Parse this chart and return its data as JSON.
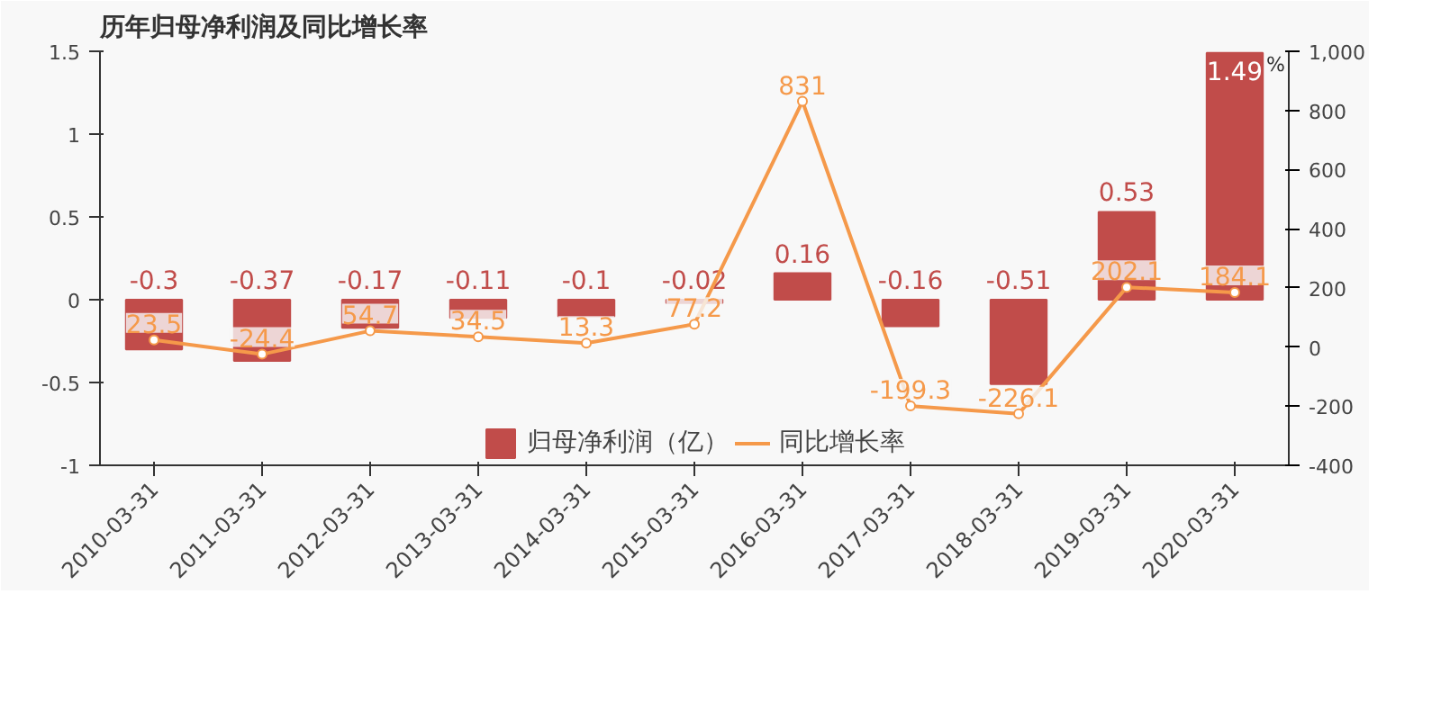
{
  "chart_data": {
    "type": "bar",
    "title": "历年归母净利润及同比增长率",
    "y2label": "%",
    "categories": [
      "2010-03-31",
      "2011-03-31",
      "2012-03-31",
      "2013-03-31",
      "2014-03-31",
      "2015-03-31",
      "2016-03-31",
      "2017-03-31",
      "2018-03-31",
      "2019-03-31",
      "2020-03-31"
    ],
    "series": [
      {
        "name": "归母净利润（亿）",
        "color": "#c14c4a",
        "values": [
          -0.3,
          -0.37,
          -0.17,
          -0.11,
          -0.1,
          -0.02,
          0.16,
          -0.16,
          -0.51,
          0.53,
          1.49
        ]
      },
      {
        "name": "同比增长率",
        "type": "line",
        "axis": "y2",
        "color": "#f5994a",
        "marker": "circle",
        "values": [
          23.5,
          -24.4,
          54.7,
          34.5,
          13.3,
          77.2,
          831,
          -199.3,
          -226.1,
          202.1,
          184.1
        ]
      }
    ],
    "ylim": [
      -1,
      1.5
    ],
    "yticks": [
      -1,
      -0.5,
      0,
      0.5,
      1,
      1.5
    ],
    "y2lim": [
      -400,
      1000
    ],
    "y2ticks": [
      -400,
      -200,
      0,
      200,
      400,
      600,
      800,
      {
        "value": 1000,
        "label": "1,000"
      }
    ],
    "data_labels": true,
    "grid": false,
    "legend": "bottom"
  }
}
